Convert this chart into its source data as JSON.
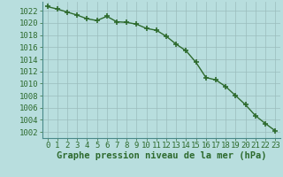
{
  "x": [
    0,
    1,
    2,
    3,
    4,
    5,
    6,
    7,
    8,
    9,
    10,
    11,
    12,
    13,
    14,
    15,
    16,
    17,
    18,
    19,
    20,
    21,
    22,
    23
  ],
  "y": [
    1022.7,
    1022.3,
    1021.8,
    1021.3,
    1020.7,
    1020.4,
    1021.1,
    1020.2,
    1020.1,
    1019.8,
    1019.1,
    1018.8,
    1017.8,
    1016.5,
    1015.4,
    1013.5,
    1011.0,
    1010.6,
    1009.5,
    1008.0,
    1006.5,
    1004.7,
    1003.4,
    1002.2
  ],
  "line_color": "#2d6a2d",
  "marker_color": "#2d6a2d",
  "bg_color": "#b8dede",
  "grid_color": "#9bbcbc",
  "xlabel": "Graphe pression niveau de la mer (hPa)",
  "xlabel_color": "#2d6a2d",
  "tick_color": "#2d6a2d",
  "ylim": [
    1001,
    1023.5
  ],
  "xlim": [
    -0.5,
    23.5
  ],
  "ytick_vals": [
    1002,
    1004,
    1006,
    1008,
    1010,
    1012,
    1014,
    1016,
    1018,
    1020,
    1022
  ],
  "xticks": [
    0,
    1,
    2,
    3,
    4,
    5,
    6,
    7,
    8,
    9,
    10,
    11,
    12,
    13,
    14,
    15,
    16,
    17,
    18,
    19,
    20,
    21,
    22,
    23
  ],
  "xtick_labels": [
    "0",
    "1",
    "2",
    "3",
    "4",
    "5",
    "6",
    "7",
    "8",
    "9",
    "10",
    "11",
    "12",
    "13",
    "14",
    "15",
    "16",
    "17",
    "18",
    "19",
    "20",
    "21",
    "22",
    "23"
  ],
  "line_width": 1.0,
  "marker_size": 4.0,
  "tick_fontsize": 6.5,
  "xlabel_fontsize": 7.5
}
